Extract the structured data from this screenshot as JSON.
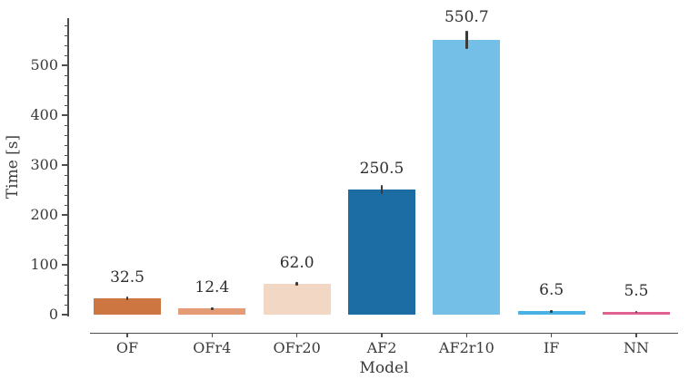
{
  "figure": {
    "kind": "matplotlib-style bar chart",
    "background": "#ffffff"
  },
  "chart_data": {
    "type": "bar",
    "title": "",
    "xlabel": "Model",
    "ylabel": "Time [s]",
    "categories": [
      "OF",
      "OFr4",
      "OFr20",
      "AF2",
      "AF2r10",
      "IF",
      "NN"
    ],
    "values": [
      32.5,
      12.4,
      62.0,
      250.5,
      550.7,
      6.5,
      5.5
    ],
    "value_labels": [
      "32.5",
      "12.4",
      "62.0",
      "250.5",
      "550.7",
      "6.5",
      "5.5"
    ],
    "errors": [
      4,
      2.5,
      4,
      9,
      18,
      2,
      2
    ],
    "bar_colors": [
      "#cd7642",
      "#e39c75",
      "#f2d8c4",
      "#1c6da4",
      "#74bfe8",
      "#49b2e5",
      "#e0618f"
    ],
    "yticks": [
      0,
      100,
      200,
      300,
      400,
      500
    ],
    "ytick_labels": [
      "0",
      "100",
      "200",
      "300",
      "400",
      "500"
    ],
    "minor_tick_step": 20,
    "minor_tick_max": 580,
    "ylim": [
      0,
      595
    ],
    "grid": false,
    "legend": null,
    "error_bar_color": "#3a3a3a",
    "axis_color": "#4d4d4d",
    "text_color": "#3b3b3b"
  }
}
